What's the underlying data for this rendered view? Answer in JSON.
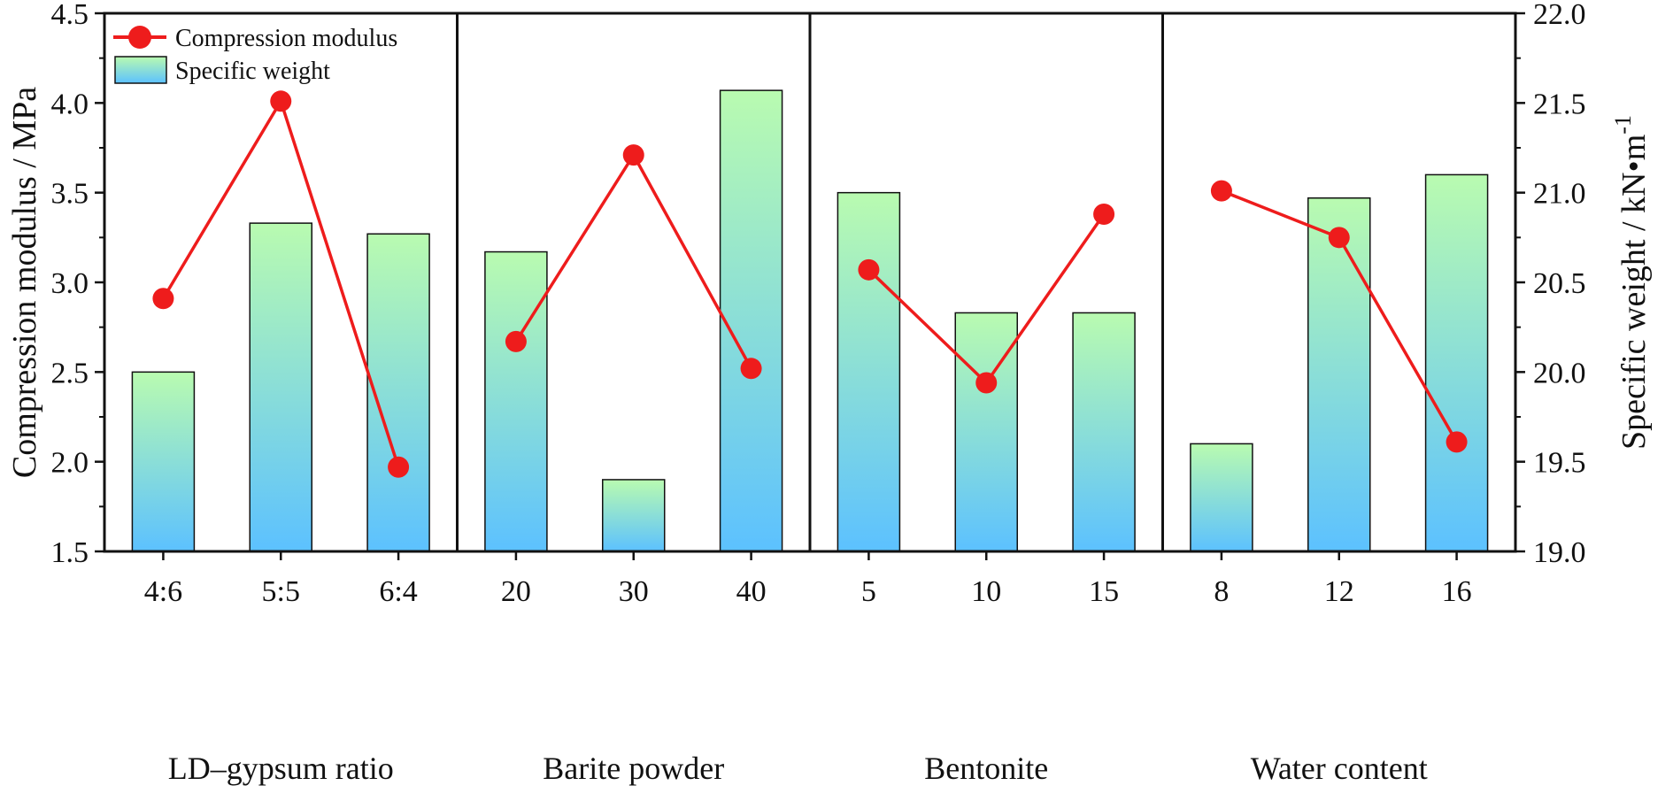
{
  "chart_data": {
    "type": "bar",
    "combo": "bar-with-line",
    "categories": [
      "4:6",
      "5:5",
      "6:4",
      "20",
      "30",
      "40",
      "5",
      "10",
      "15",
      "8",
      "12",
      "16"
    ],
    "groups": [
      {
        "label": "LD–gypsum ratio",
        "categories": [
          "4:6",
          "5:5",
          "6:4"
        ]
      },
      {
        "label": "Barite powder",
        "categories": [
          "20",
          "30",
          "40"
        ]
      },
      {
        "label": "Bentonite",
        "categories": [
          "5",
          "10",
          "15"
        ]
      },
      {
        "label": "Water content",
        "categories": [
          "8",
          "12",
          "16"
        ]
      }
    ],
    "series": [
      {
        "name": "Specific weight",
        "kind": "bar",
        "axis": "right",
        "values": [
          20.0,
          20.83,
          20.77,
          20.67,
          19.4,
          21.57,
          21.0,
          20.33,
          20.33,
          19.6,
          20.97,
          21.1
        ],
        "color_top": "#b9fbb0",
        "color_bottom": "#5cc1ff"
      },
      {
        "name": "Compression modulus",
        "kind": "line",
        "axis": "left",
        "values": [
          2.91,
          4.01,
          1.97,
          2.67,
          3.71,
          2.52,
          3.07,
          2.44,
          3.38,
          3.51,
          3.25,
          2.11
        ],
        "color": "#ee1c1c"
      }
    ],
    "y_left": {
      "label": "Compression modulus / MPa",
      "lim": [
        1.5,
        4.5
      ],
      "ticks": [
        "1.5",
        "2.0",
        "2.5",
        "3.0",
        "3.5",
        "4.0",
        "4.5"
      ]
    },
    "y_right": {
      "label_main": "Specific weight / kN•m",
      "label_sup": "-1",
      "lim": [
        19.0,
        22.0
      ],
      "ticks": [
        "19.0",
        "19.5",
        "20.0",
        "20.5",
        "21.0",
        "21.5",
        "22.0"
      ]
    },
    "legend": {
      "position": "top-left",
      "entries": [
        "Compression modulus",
        "Specific weight"
      ]
    },
    "grid": false
  }
}
